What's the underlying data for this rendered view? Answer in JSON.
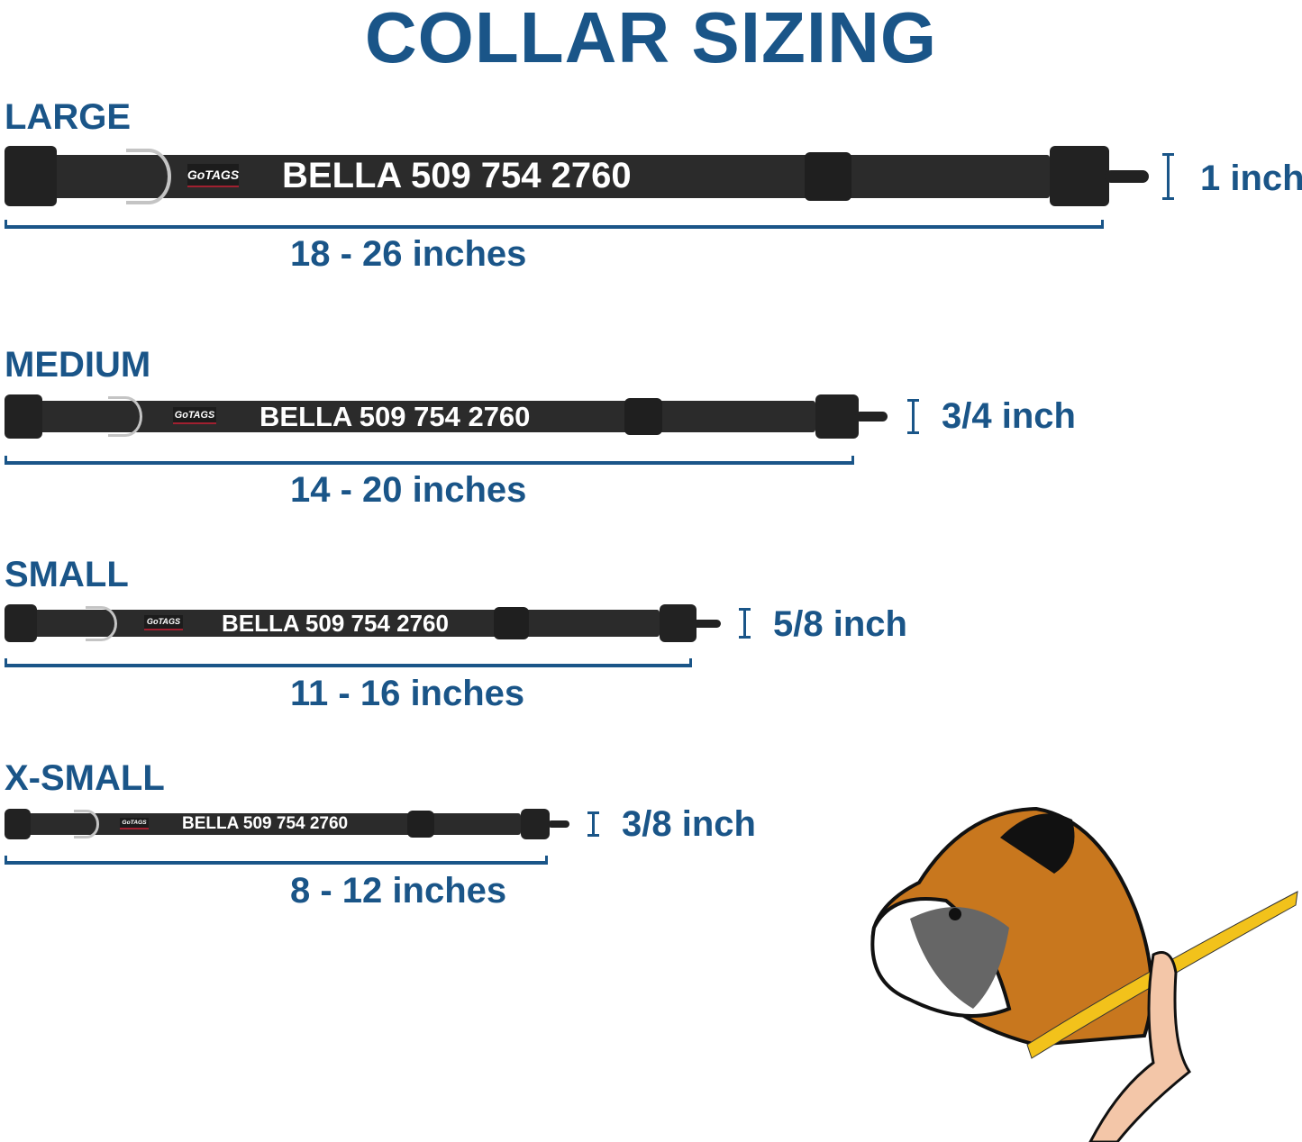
{
  "title": "COLLAR SIZING",
  "colors": {
    "accent": "#1a5588",
    "collar": "#2b2b2b",
    "ring": "#c4c4c4"
  },
  "logo_text": "GoTAGS",
  "sizes": [
    {
      "name": "LARGE",
      "collar_text": "BELLA 509 754 2760",
      "width": "1 inch",
      "range": "18 - 26 inches"
    },
    {
      "name": "MEDIUM",
      "collar_text": "BELLA 509 754 2760",
      "width": "3/4 inch",
      "range": "14 - 20 inches"
    },
    {
      "name": "SMALL",
      "collar_text": "BELLA 509 754 2760",
      "width": "5/8 inch",
      "range": "11 - 16 inches"
    },
    {
      "name": "X-SMALL",
      "collar_text": "BELLA 509 754 2760",
      "width": "3/8 inch",
      "range": "8 - 12 inches"
    }
  ],
  "illustration": "boxer-dog-measuring-tape"
}
